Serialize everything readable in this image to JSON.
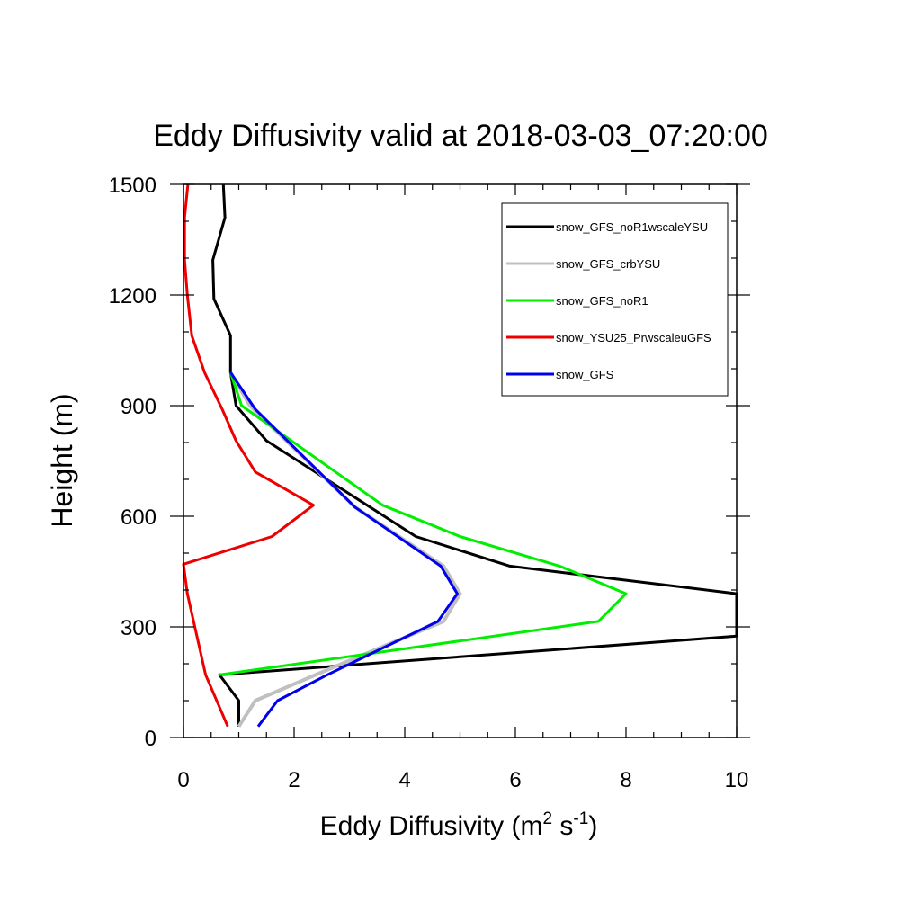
{
  "chart_data": {
    "type": "line",
    "title": "Eddy Diffusivity valid at 2018-03-03_07:20:00",
    "xlabel": {
      "base": "Eddy Diffusivity (m",
      "sup1": "2",
      "mid": " s",
      "sup2": "-1",
      "end": ")"
    },
    "ylabel": "Height (m)",
    "xlim": [
      0,
      10
    ],
    "ylim": [
      0,
      1500
    ],
    "xticks": [
      0,
      2,
      4,
      6,
      8,
      10
    ],
    "yticks": [
      0,
      300,
      600,
      900,
      1200,
      1500
    ],
    "grid": false,
    "legend_position": "top-right",
    "series": [
      {
        "name": "snow_GFS_noR1wscaleYSU",
        "color": "#000000",
        "points": [
          [
            1.0,
            30
          ],
          [
            1.0,
            100
          ],
          [
            0.65,
            170
          ],
          [
            10.0,
            275
          ],
          [
            10.0,
            390
          ],
          [
            5.9,
            465
          ],
          [
            4.2,
            545
          ],
          [
            1.5,
            805
          ],
          [
            0.95,
            900
          ],
          [
            0.85,
            990
          ],
          [
            0.85,
            1090
          ],
          [
            0.55,
            1190
          ],
          [
            0.53,
            1295
          ],
          [
            0.75,
            1410
          ],
          [
            0.72,
            1500
          ]
        ]
      },
      {
        "name": "snow_GFS_crbYSU",
        "color": "#c0c0c0",
        "points": [
          [
            1.0,
            30
          ],
          [
            1.3,
            100
          ],
          [
            2.7,
            190
          ],
          [
            4.7,
            315
          ],
          [
            5.0,
            390
          ],
          [
            4.7,
            465
          ],
          [
            3.1,
            625
          ],
          [
            1.2,
            900
          ],
          [
            0.85,
            990
          ]
        ]
      },
      {
        "name": "snow_GFS_noR1",
        "color": "#00ee00",
        "points": [
          [
            0.65,
            170
          ],
          [
            7.5,
            315
          ],
          [
            8.0,
            390
          ],
          [
            6.8,
            465
          ],
          [
            5.0,
            545
          ],
          [
            3.6,
            630
          ],
          [
            1.05,
            900
          ],
          [
            0.85,
            990
          ]
        ]
      },
      {
        "name": "snow_YSU25_PrwscaleuGFS",
        "color": "#ee0000",
        "points": [
          [
            0.8,
            30
          ],
          [
            0.4,
            170
          ],
          [
            0.07,
            390
          ],
          [
            0.0,
            470
          ],
          [
            1.6,
            545
          ],
          [
            2.35,
            630
          ],
          [
            1.3,
            720
          ],
          [
            0.95,
            805
          ],
          [
            0.7,
            890
          ],
          [
            0.38,
            990
          ],
          [
            0.15,
            1090
          ],
          [
            0.07,
            1200
          ],
          [
            0.02,
            1295
          ],
          [
            0.02,
            1410
          ],
          [
            0.08,
            1500
          ]
        ]
      },
      {
        "name": "snow_GFS",
        "color": "#0000ee",
        "points": [
          [
            1.35,
            30
          ],
          [
            1.7,
            100
          ],
          [
            2.6,
            170
          ],
          [
            4.6,
            315
          ],
          [
            4.95,
            390
          ],
          [
            4.65,
            465
          ],
          [
            3.1,
            625
          ],
          [
            1.3,
            890
          ],
          [
            0.85,
            990
          ]
        ]
      }
    ]
  }
}
